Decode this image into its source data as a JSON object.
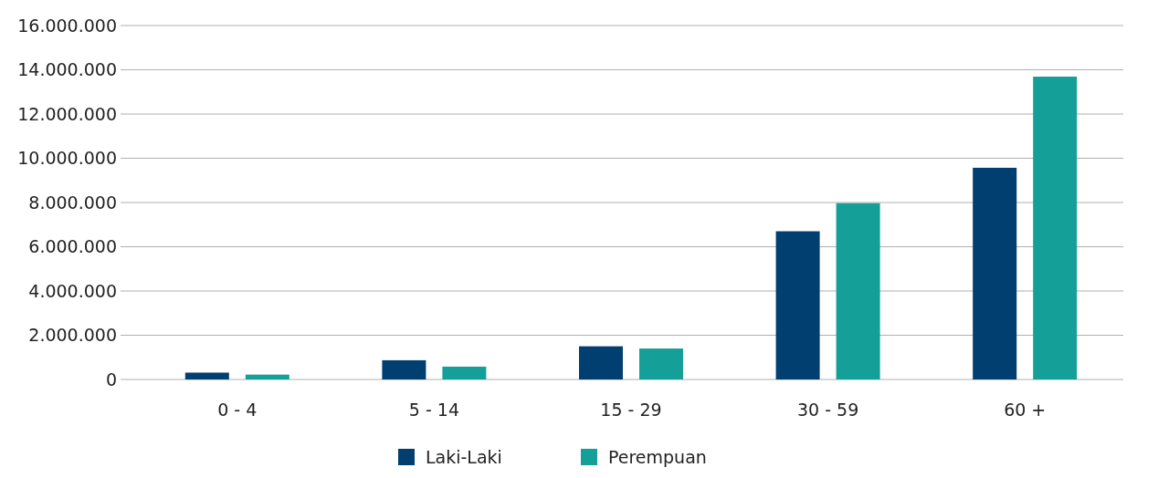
{
  "chart_data": {
    "type": "bar",
    "categories": [
      "0 - 4",
      "5 - 14",
      "15 - 29",
      "30 - 59",
      "60 +"
    ],
    "series": [
      {
        "name": "Laki-Laki",
        "color": "#003f70",
        "values": [
          310000,
          870000,
          1500000,
          6700000,
          9570000
        ]
      },
      {
        "name": "Perempuan",
        "color": "#14a098",
        "values": [
          220000,
          580000,
          1400000,
          7970000,
          13690000
        ]
      }
    ],
    "ylim": [
      0,
      16000000
    ],
    "yticks": [
      {
        "value": 0,
        "label": "0"
      },
      {
        "value": 2000000,
        "label": "2.000.000"
      },
      {
        "value": 4000000,
        "label": "4.000.000"
      },
      {
        "value": 6000000,
        "label": "6.000.000"
      },
      {
        "value": 8000000,
        "label": "8.000.000"
      },
      {
        "value": 10000000,
        "label": "10.000.000"
      },
      {
        "value": 12000000,
        "label": "12.000.000"
      },
      {
        "value": 14000000,
        "label": "14.000.000"
      },
      {
        "value": 16000000,
        "label": "16.000.000"
      }
    ],
    "grid": "y",
    "legend": "bottom"
  }
}
